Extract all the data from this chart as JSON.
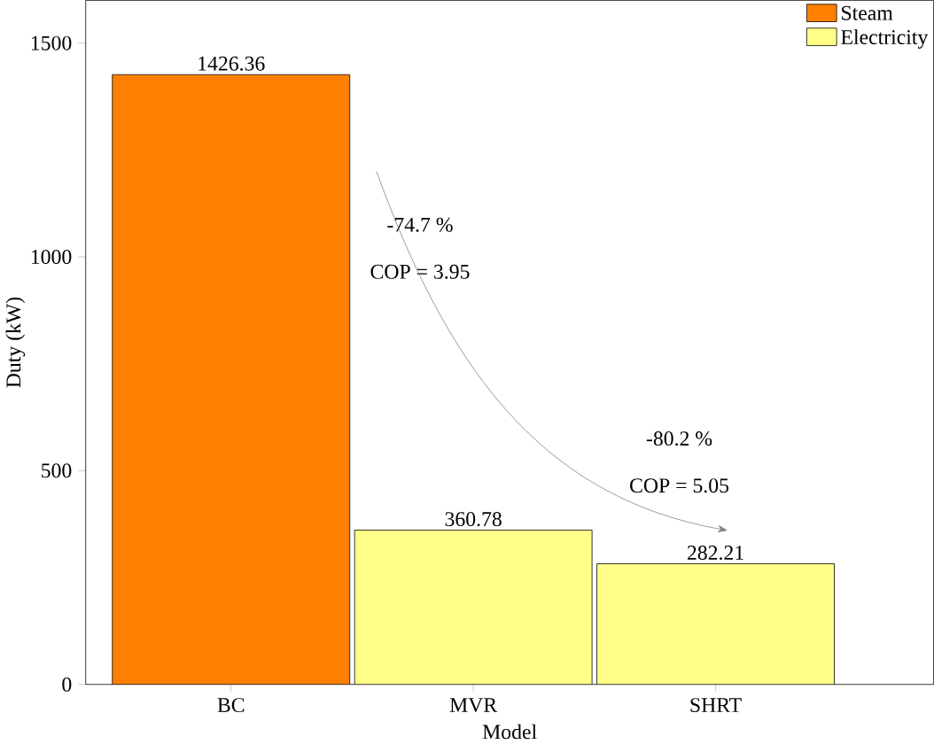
{
  "chart_data": {
    "type": "bar",
    "xlabel": "Model",
    "ylabel": "Duty (kW)",
    "categories": [
      "BC",
      "MVR",
      "SHRT"
    ],
    "series": [
      {
        "name": "Steam",
        "color": "#ff8000",
        "values": [
          1426.36,
          null,
          null
        ]
      },
      {
        "name": "Electricity",
        "color": "#ffff88",
        "values": [
          null,
          360.78,
          282.21
        ]
      }
    ],
    "ylim": [
      0,
      1600
    ],
    "yticks": [
      0,
      500,
      1000,
      1500
    ],
    "data_labels": true,
    "legend": "top right",
    "grid": false,
    "annotations": [
      "-74.7 %",
      "COP = 3.95",
      "-80.2 %",
      "COP = 5.05"
    ]
  }
}
